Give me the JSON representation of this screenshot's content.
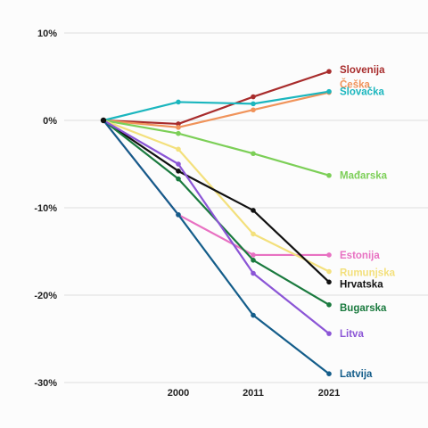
{
  "chart_data": {
    "type": "line",
    "title": "",
    "xlabel": "",
    "ylabel": "",
    "x": [
      "",
      "2000",
      "2011",
      "2021"
    ],
    "x_tick_labels": [
      "2000",
      "2011",
      "2021"
    ],
    "ylim": [
      -30,
      10
    ],
    "y_ticks": [
      10,
      0,
      -10,
      -20,
      -30
    ],
    "y_tick_labels": [
      "10%",
      "0%",
      "-10%",
      "-20%",
      "-30%"
    ],
    "grid": true,
    "legend": "labels at line ends (right)",
    "series": [
      {
        "name": "Slovenija",
        "color": "#a82c2c",
        "values": [
          0,
          -0.4,
          2.7,
          5.6
        ]
      },
      {
        "name": "Češka",
        "color": "#f0935a",
        "values": [
          0,
          -0.8,
          1.2,
          3.2
        ]
      },
      {
        "name": "Slovačka",
        "color": "#1bb6be",
        "values": [
          0,
          2.1,
          1.9,
          3.3
        ]
      },
      {
        "name": "Mađarska",
        "color": "#7ccf57",
        "values": [
          0,
          -1.5,
          -3.8,
          -6.3
        ]
      },
      {
        "name": "Estonija",
        "color": "#e871c2",
        "values": [
          0,
          -10.8,
          -15.4,
          -15.4
        ]
      },
      {
        "name": "Rumunjska",
        "color": "#f3e07c",
        "values": [
          0,
          -3.3,
          -13.0,
          -17.3
        ]
      },
      {
        "name": "Hrvatska",
        "color": "#111111",
        "values": [
          0,
          -5.8,
          -10.3,
          -18.5
        ]
      },
      {
        "name": "Bugarska",
        "color": "#1a7a3e",
        "values": [
          0,
          -6.7,
          -16.0,
          -21.1
        ]
      },
      {
        "name": "Litva",
        "color": "#8b55d6",
        "values": [
          0,
          -5.0,
          -17.5,
          -24.4
        ]
      },
      {
        "name": "Latvija",
        "color": "#145d8a",
        "values": [
          0,
          -10.8,
          -22.3,
          -29.0
        ]
      }
    ]
  }
}
